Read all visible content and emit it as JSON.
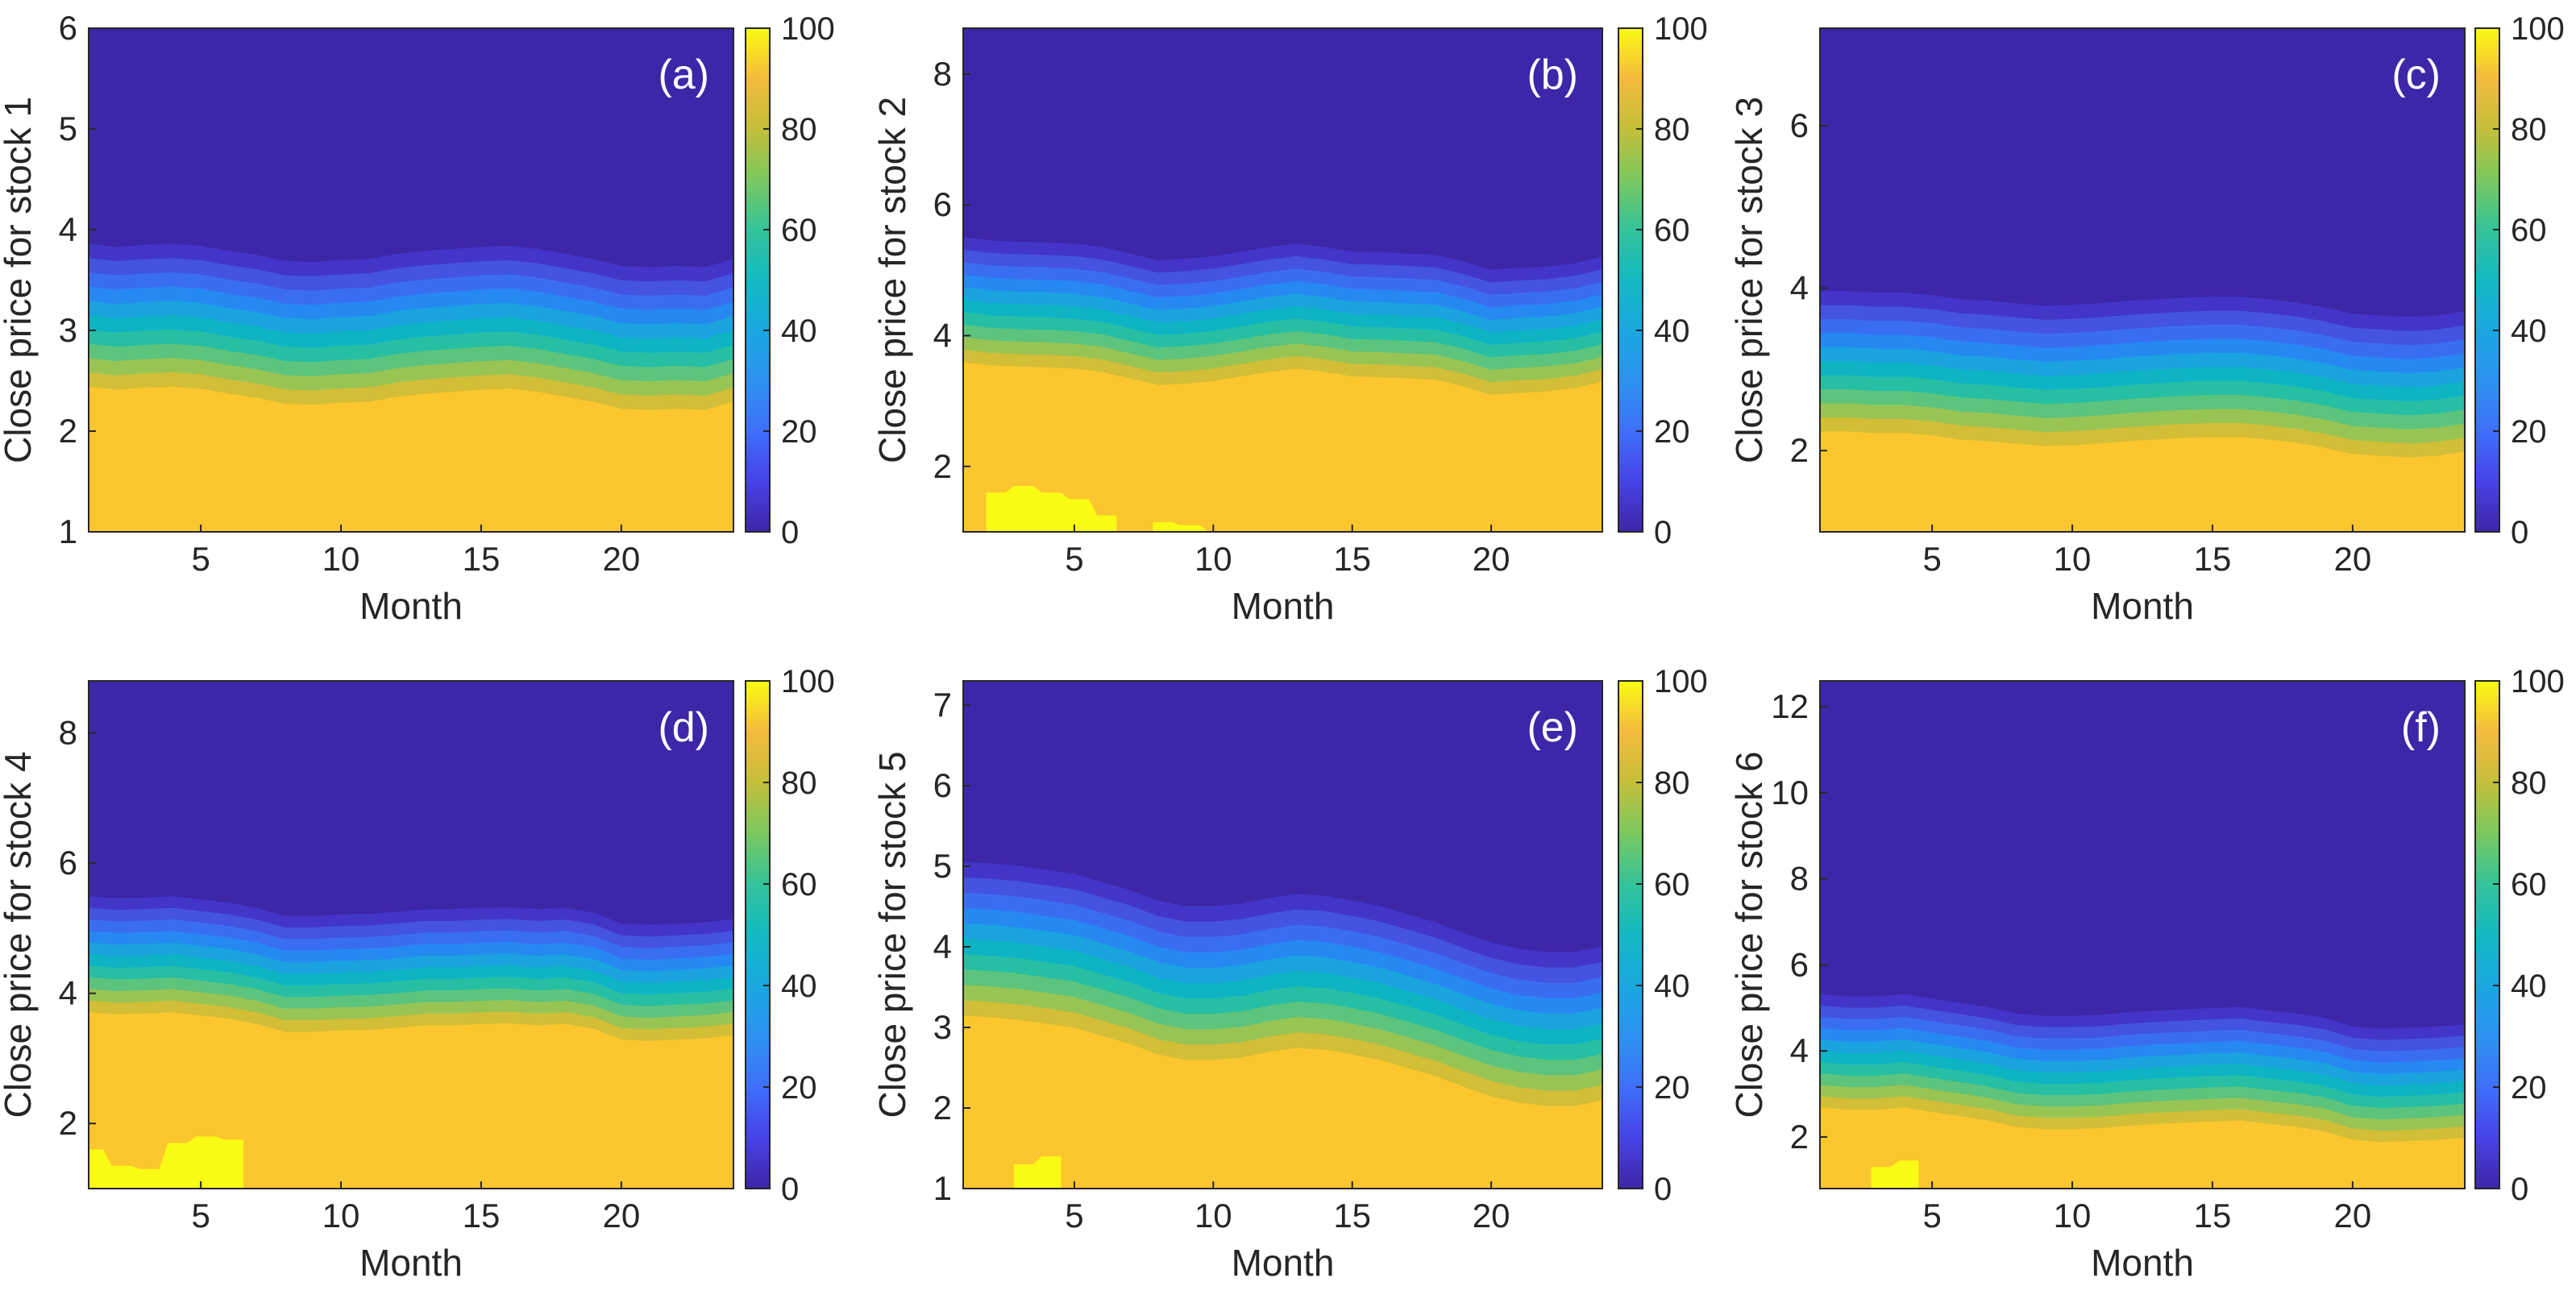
{
  "chart_data": [
    {
      "id": "a",
      "type": "heatmap",
      "title": "",
      "panel_label": "(a)",
      "xlabel": "Month",
      "ylabel": "Close price for stock 1",
      "xlim": [
        1,
        24
      ],
      "ylim": [
        1,
        6
      ],
      "x_ticks": [
        5,
        10,
        15,
        20
      ],
      "y_ticks": [
        1,
        2,
        3,
        4,
        5,
        6
      ],
      "colorbar": {
        "min": 0,
        "max": 100,
        "ticks": [
          0,
          20,
          40,
          60,
          80,
          100
        ]
      },
      "months": [
        1,
        2,
        3,
        4,
        5,
        6,
        7,
        8,
        9,
        10,
        11,
        12,
        13,
        14,
        15,
        16,
        17,
        18,
        19,
        20,
        21,
        22,
        23,
        24
      ],
      "mid_price": [
        3.15,
        3.12,
        3.14,
        3.15,
        3.13,
        3.08,
        3.04,
        2.98,
        2.97,
        2.99,
        3.0,
        3.05,
        3.08,
        3.1,
        3.12,
        3.13,
        3.1,
        3.05,
        3.0,
        2.93,
        2.92,
        2.93,
        2.92,
        3.0
      ],
      "spread": 0.78,
      "highlights": []
    },
    {
      "id": "b",
      "type": "heatmap",
      "title": "",
      "panel_label": "(b)",
      "xlabel": "Month",
      "ylabel": "Close price for stock 2",
      "xlim": [
        1,
        24
      ],
      "ylim": [
        1,
        8.7
      ],
      "x_ticks": [
        5,
        10,
        15,
        20
      ],
      "y_ticks": [
        2,
        4,
        6,
        8
      ],
      "colorbar": {
        "min": 0,
        "max": 100,
        "ticks": [
          0,
          20,
          40,
          60,
          80,
          100
        ]
      },
      "months": [
        1,
        2,
        3,
        4,
        5,
        6,
        7,
        8,
        9,
        10,
        11,
        12,
        13,
        14,
        15,
        16,
        17,
        18,
        19,
        20,
        21,
        22,
        23,
        24
      ],
      "mid_price": [
        4.55,
        4.5,
        4.48,
        4.47,
        4.45,
        4.4,
        4.3,
        4.2,
        4.22,
        4.26,
        4.33,
        4.4,
        4.45,
        4.4,
        4.33,
        4.32,
        4.3,
        4.28,
        4.18,
        4.05,
        4.08,
        4.1,
        4.15,
        4.25
      ],
      "spread": 1.05,
      "highlights": [
        {
          "x": [
            2,
            3,
            4,
            5,
            6
          ],
          "top": [
            1.6,
            1.7,
            1.6,
            1.5,
            1.25
          ]
        },
        {
          "x": [
            8,
            9,
            10
          ],
          "top": [
            1.15,
            1.1,
            1.0
          ]
        }
      ]
    },
    {
      "id": "c",
      "type": "heatmap",
      "title": "",
      "panel_label": "(c)",
      "xlabel": "Month",
      "ylabel": "Close price for stock 3",
      "xlim": [
        1,
        24
      ],
      "ylim": [
        1,
        7.2
      ],
      "x_ticks": [
        5,
        10,
        15,
        20
      ],
      "y_ticks": [
        2,
        4,
        6
      ],
      "colorbar": {
        "min": 0,
        "max": 100,
        "ticks": [
          0,
          20,
          40,
          60,
          80,
          100
        ]
      },
      "months": [
        1,
        2,
        3,
        4,
        5,
        6,
        7,
        8,
        9,
        10,
        11,
        12,
        13,
        14,
        15,
        16,
        17,
        18,
        19,
        20,
        21,
        22,
        23,
        24
      ],
      "mid_price": [
        3.1,
        3.1,
        3.08,
        3.08,
        3.05,
        3.0,
        2.98,
        2.95,
        2.92,
        2.93,
        2.95,
        2.98,
        3.0,
        3.02,
        3.03,
        3.03,
        3.0,
        2.96,
        2.9,
        2.82,
        2.8,
        2.78,
        2.8,
        2.85
      ],
      "spread": 0.95,
      "highlights": []
    },
    {
      "id": "d",
      "type": "heatmap",
      "title": "",
      "panel_label": "(d)",
      "xlabel": "Month",
      "ylabel": "Close price for stock 4",
      "xlim": [
        1,
        24
      ],
      "ylim": [
        1,
        8.8
      ],
      "x_ticks": [
        5,
        10,
        15,
        20
      ],
      "y_ticks": [
        2,
        4,
        6,
        8
      ],
      "colorbar": {
        "min": 0,
        "max": 100,
        "ticks": [
          0,
          20,
          40,
          60,
          80,
          100
        ]
      },
      "months": [
        1,
        2,
        3,
        4,
        5,
        6,
        7,
        8,
        9,
        10,
        11,
        12,
        13,
        14,
        15,
        16,
        17,
        18,
        19,
        20,
        21,
        22,
        23,
        24
      ],
      "mid_price": [
        4.6,
        4.57,
        4.58,
        4.6,
        4.55,
        4.5,
        4.42,
        4.3,
        4.3,
        4.32,
        4.33,
        4.36,
        4.4,
        4.4,
        4.42,
        4.43,
        4.4,
        4.42,
        4.35,
        4.18,
        4.16,
        4.18,
        4.2,
        4.25
      ],
      "spread": 0.98,
      "highlights": [
        {
          "x": [
            1,
            2,
            3,
            4,
            5,
            6
          ],
          "top": [
            1.6,
            1.35,
            1.3,
            1.7,
            1.8,
            1.75
          ]
        }
      ]
    },
    {
      "id": "e",
      "type": "heatmap",
      "title": "",
      "panel_label": "(e)",
      "xlabel": "Month",
      "ylabel": "Close price for stock 5",
      "xlim": [
        1,
        24
      ],
      "ylim": [
        1,
        7.3
      ],
      "x_ticks": [
        5,
        10,
        15,
        20
      ],
      "y_ticks": [
        1,
        2,
        3,
        4,
        5,
        6,
        7
      ],
      "colorbar": {
        "min": 0,
        "max": 100,
        "ticks": [
          0,
          20,
          40,
          60,
          80,
          100
        ]
      },
      "months": [
        1,
        2,
        3,
        4,
        5,
        6,
        7,
        8,
        9,
        10,
        11,
        12,
        13,
        14,
        15,
        16,
        17,
        18,
        19,
        20,
        21,
        22,
        23,
        24
      ],
      "mid_price": [
        4.1,
        4.08,
        4.05,
        4.0,
        3.95,
        3.85,
        3.75,
        3.62,
        3.55,
        3.55,
        3.58,
        3.65,
        3.7,
        3.68,
        3.62,
        3.55,
        3.45,
        3.35,
        3.22,
        3.1,
        3.02,
        2.98,
        2.98,
        3.05
      ],
      "spread": 1.05,
      "highlights": [
        {
          "x": [
            3,
            4
          ],
          "top": [
            1.3,
            1.4
          ]
        }
      ]
    },
    {
      "id": "f",
      "type": "heatmap",
      "title": "",
      "panel_label": "(f)",
      "xlabel": "Month",
      "ylabel": "Close price for stock 6",
      "xlim": [
        1,
        24
      ],
      "ylim": [
        0.8,
        12.6
      ],
      "x_ticks": [
        5,
        10,
        15,
        20
      ],
      "y_ticks": [
        2,
        4,
        6,
        8,
        10,
        12
      ],
      "colorbar": {
        "min": 0,
        "max": 100,
        "ticks": [
          0,
          20,
          40,
          60,
          80,
          100
        ]
      },
      "months": [
        1,
        2,
        3,
        4,
        5,
        6,
        7,
        8,
        9,
        10,
        11,
        12,
        13,
        14,
        15,
        16,
        17,
        18,
        19,
        20,
        21,
        22,
        23,
        24
      ],
      "mid_price": [
        4.0,
        3.95,
        3.95,
        4.0,
        3.9,
        3.8,
        3.7,
        3.55,
        3.5,
        3.5,
        3.52,
        3.58,
        3.62,
        3.65,
        3.68,
        3.7,
        3.62,
        3.55,
        3.45,
        3.25,
        3.2,
        3.22,
        3.25,
        3.3
      ],
      "spread": 1.45,
      "highlights": [
        {
          "x": [
            3,
            4
          ],
          "top": [
            1.3,
            1.45
          ]
        }
      ]
    }
  ],
  "colors": {
    "level_bands": [
      "#3e26a8",
      "#4235c8",
      "#4453e0",
      "#3a6ef2",
      "#2689f2",
      "#1aa3df",
      "#0eb4c4",
      "#27bfa4",
      "#5cc47d",
      "#98c454",
      "#d2be37",
      "#f3b73d",
      "#fcc62f",
      "#f9fb15"
    ],
    "axis": "#262626"
  }
}
